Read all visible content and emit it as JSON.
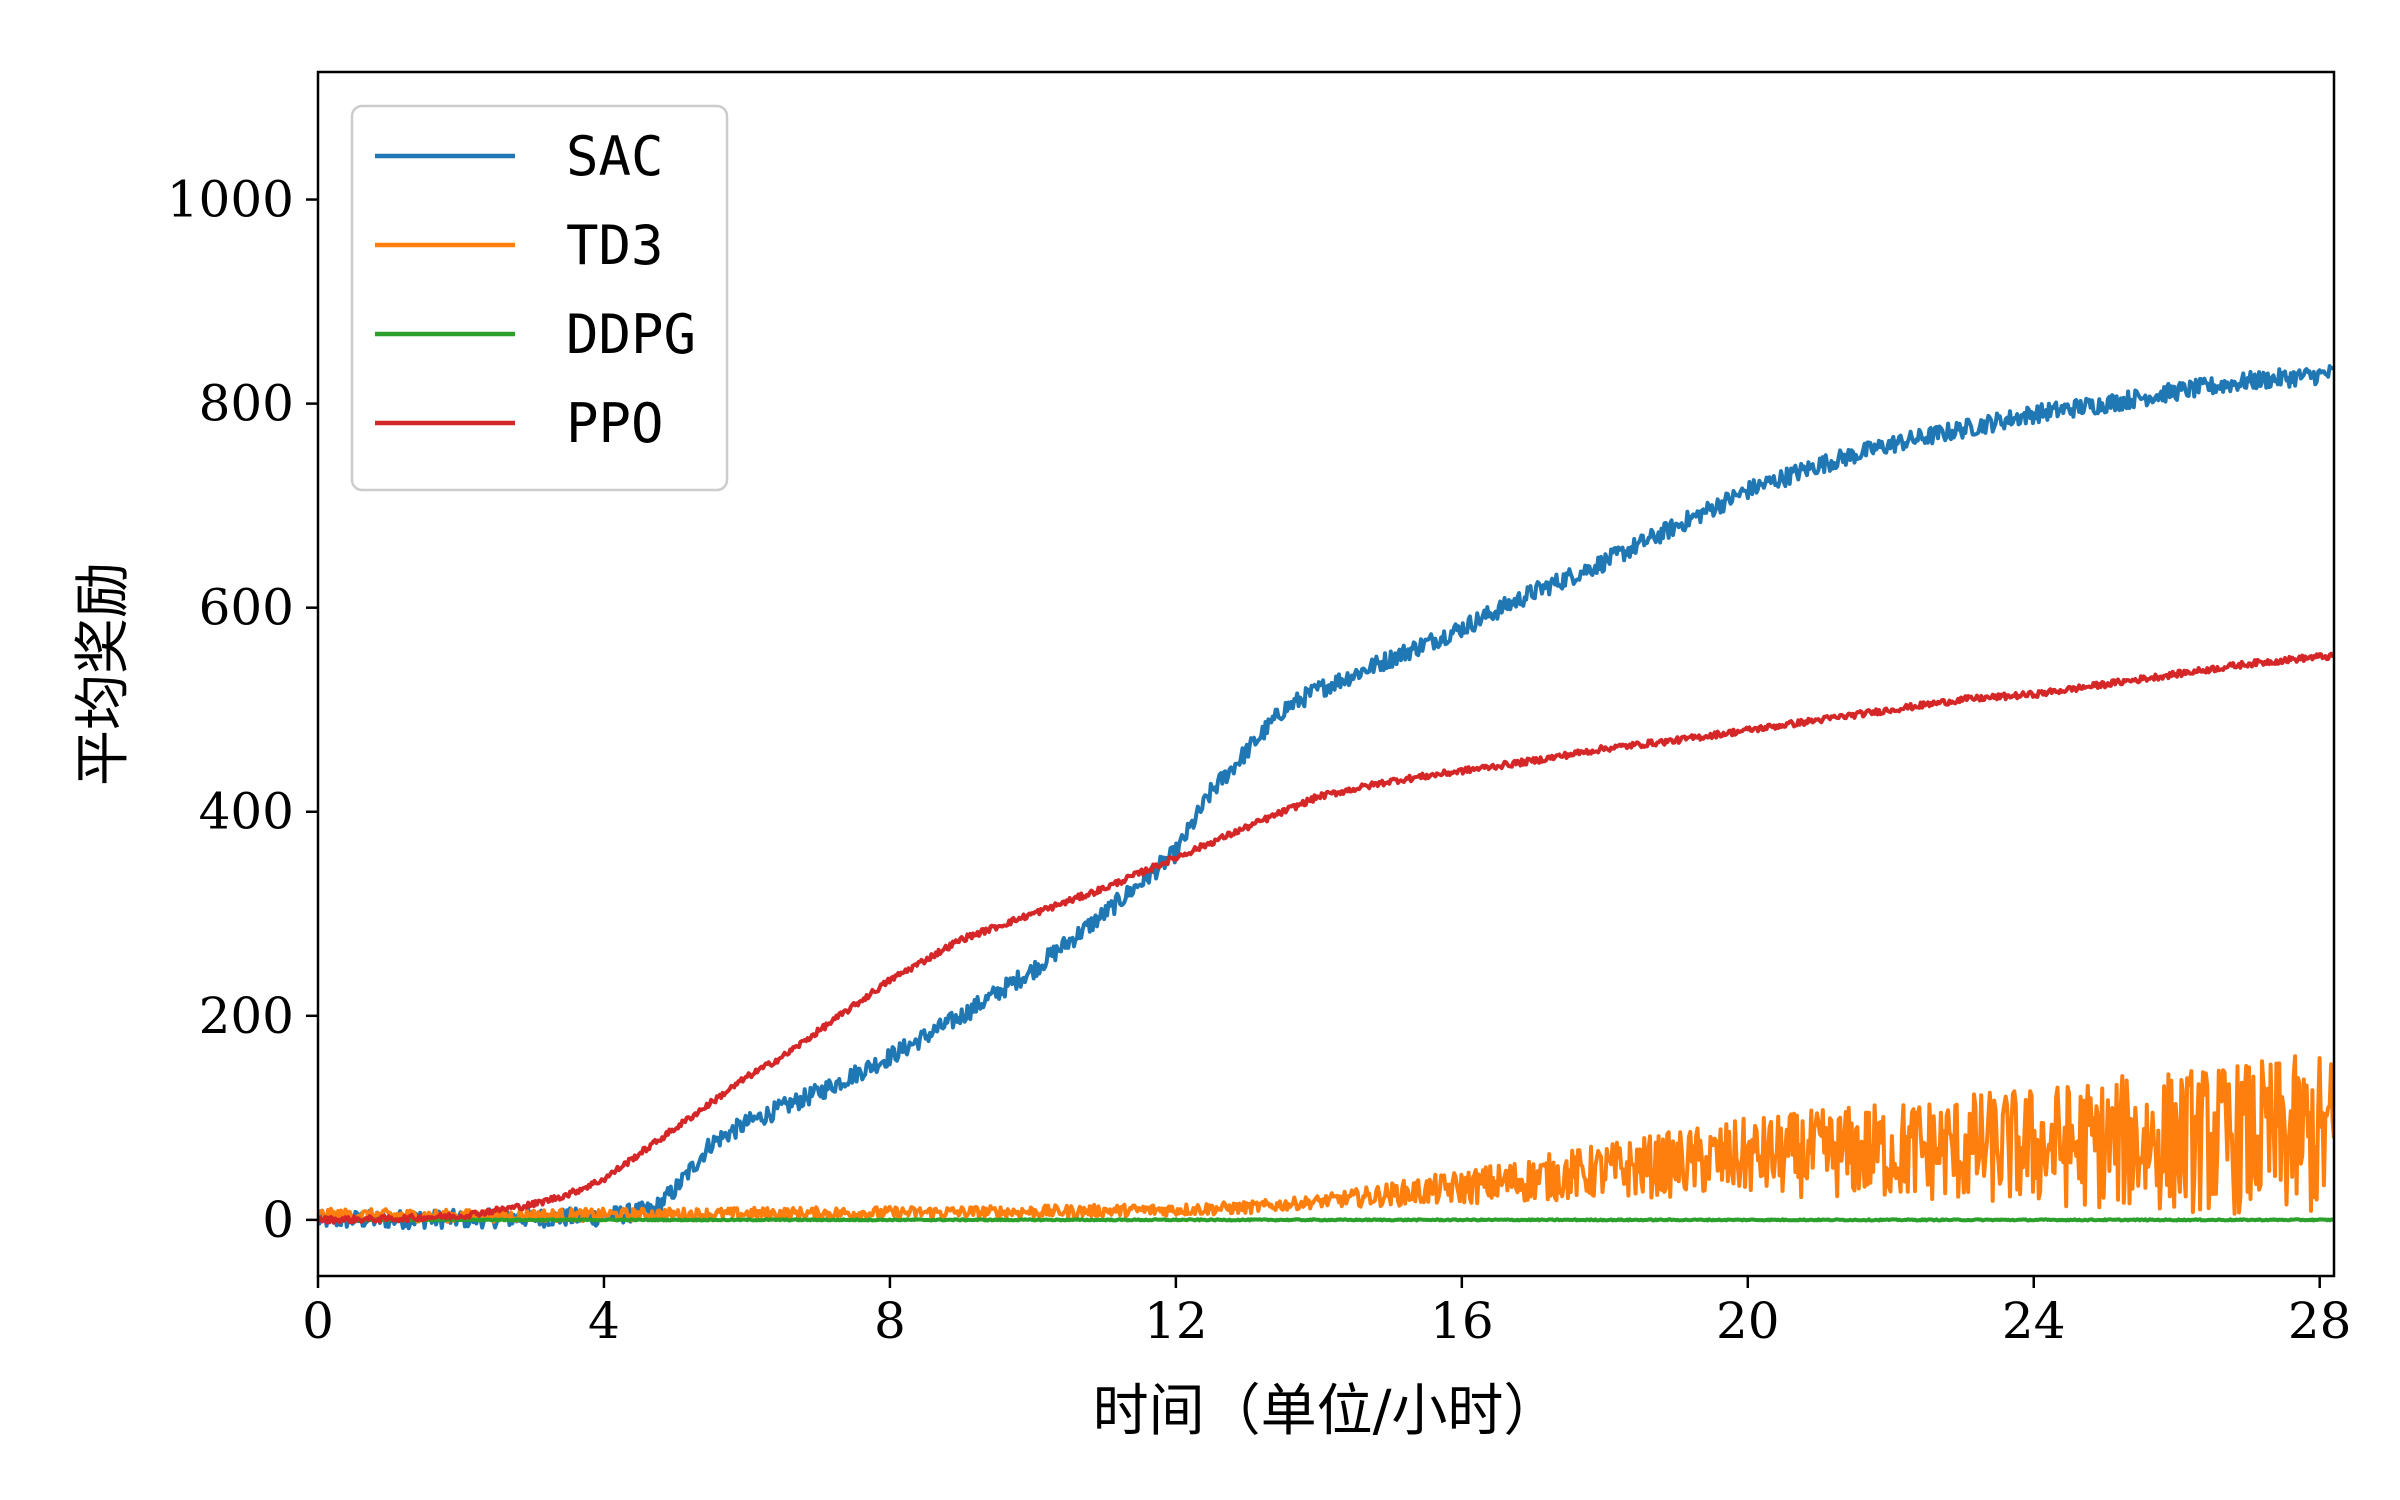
{
  "chart_data": {
    "type": "line",
    "xlabel": "时间（单位/小时）",
    "ylabel": "平均奖励",
    "xlim": [
      0,
      28.2
    ],
    "ylim": [
      -55,
      1125
    ],
    "xticks": [
      0,
      4,
      8,
      12,
      16,
      20,
      24,
      28
    ],
    "yticks": [
      0,
      200,
      400,
      600,
      800,
      1000
    ],
    "grid": false,
    "legend": {
      "placement": "top-left"
    },
    "series": [
      {
        "name": "SAC",
        "color": "#1f77b4",
        "noise": 9,
        "x": [
          0,
          2,
          4,
          4.7,
          5,
          5.5,
          6,
          6.5,
          7,
          8,
          9,
          10,
          11,
          12,
          12.5,
          13,
          13.5,
          14,
          15,
          16,
          17,
          18,
          19,
          20,
          21,
          22,
          23,
          24,
          25,
          26,
          27,
          28,
          28.2
        ],
        "y": [
          0,
          1,
          3,
          10,
          30,
          75,
          95,
          110,
          125,
          160,
          200,
          245,
          300,
          360,
          420,
          460,
          500,
          520,
          550,
          580,
          615,
          645,
          680,
          715,
          740,
          760,
          775,
          790,
          800,
          812,
          822,
          828,
          830
        ]
      },
      {
        "name": "TD3",
        "color": "#ff7f0e",
        "noise": 6,
        "noise_growth": 75,
        "x": [
          0,
          2,
          4,
          6,
          8,
          10,
          12,
          13,
          14,
          15,
          16,
          17,
          18,
          19,
          20,
          21,
          22,
          23,
          24,
          25,
          26,
          27,
          28,
          28.2
        ],
        "y": [
          5,
          4,
          5,
          6,
          7,
          8,
          10,
          12,
          18,
          25,
          32,
          40,
          48,
          55,
          62,
          65,
          68,
          70,
          72,
          75,
          78,
          80,
          82,
          82
        ]
      },
      {
        "name": "DDPG",
        "color": "#2ca02c",
        "noise": 0.6,
        "x": [
          0,
          28.2
        ],
        "y": [
          0,
          0
        ]
      },
      {
        "name": "PPO",
        "color": "#d62728",
        "noise": 3,
        "x": [
          0,
          1,
          2,
          3,
          3.5,
          4,
          4.5,
          5,
          5.5,
          6,
          6.5,
          7,
          8,
          9,
          10,
          11,
          12,
          13,
          14,
          15,
          16,
          17,
          18,
          19,
          20,
          21,
          22,
          23,
          24,
          25,
          26,
          27,
          28,
          28.2
        ],
        "y": [
          0,
          1,
          4,
          15,
          25,
          40,
          65,
          90,
          115,
          140,
          160,
          185,
          235,
          275,
          300,
          325,
          355,
          385,
          415,
          430,
          440,
          450,
          462,
          470,
          480,
          490,
          500,
          510,
          515,
          525,
          535,
          545,
          552,
          552
        ]
      }
    ]
  }
}
